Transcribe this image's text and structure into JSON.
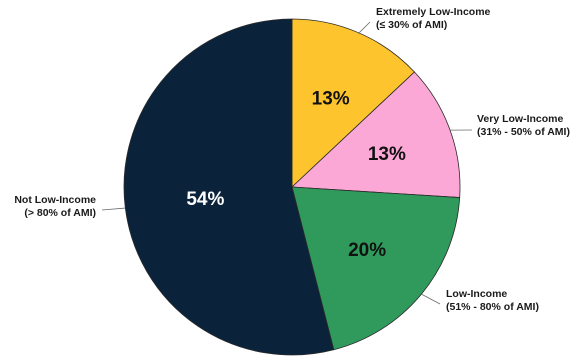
{
  "chart_data": {
    "type": "pie",
    "title": "",
    "slices": [
      {
        "label_line1": "Extremely Low-Income",
        "label_line2": "(≤ 30% of AMI)",
        "value": 13,
        "value_label": "13%",
        "color": "#FEC42D",
        "text_color": "#111111"
      },
      {
        "label_line1": "Very Low-Income",
        "label_line2": "(31% - 50% of AMI)",
        "value": 13,
        "value_label": "13%",
        "color": "#FBA8D6",
        "text_color": "#111111"
      },
      {
        "label_line1": "Low-Income",
        "label_line2": "(51% - 80% of AMI)",
        "value": 20,
        "value_label": "20%",
        "color": "#2F9A5C",
        "text_color": "#111111"
      },
      {
        "label_line1": "Not Low-Income",
        "label_line2": "(> 80% of AMI)",
        "value": 54,
        "value_label": "54%",
        "color": "#0A223A",
        "text_color": "#ffffff"
      }
    ],
    "start_angle": "12 o'clock",
    "direction": "clockwise",
    "legend": "none"
  }
}
